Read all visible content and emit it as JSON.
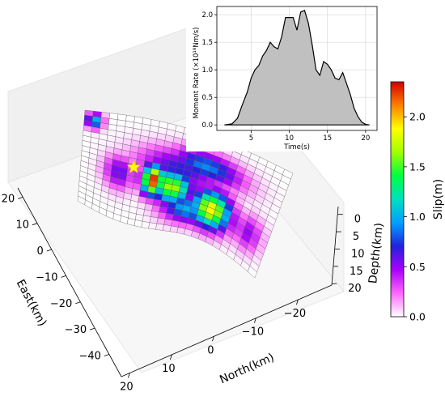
{
  "chart_data": [
    {
      "type": "heatmap",
      "subtype": "3d-fault-slip-surface",
      "xlabel": "North(km)",
      "ylabel": "East(km)",
      "zlabel": "Depth(km)",
      "north_ticks": [
        "20",
        "10",
        "0",
        "−10",
        "−20"
      ],
      "east_ticks": [
        "20",
        "10",
        "0",
        "−10",
        "−20",
        "−30",
        "−40"
      ],
      "depth_ticks": [
        "0",
        "5",
        "10",
        "15",
        "20"
      ],
      "fault_grid": {
        "cols": 25,
        "rows": 18
      },
      "hypocenter_marker": "yellow star",
      "slip_patches": [
        {
          "u": 0.38,
          "v": 0.55,
          "ru": 0.06,
          "rv": 0.14,
          "peak": 2.3
        },
        {
          "u": 0.48,
          "v": 0.58,
          "ru": 0.1,
          "rv": 0.16,
          "peak": 1.7
        },
        {
          "u": 0.7,
          "v": 0.68,
          "ru": 0.1,
          "rv": 0.18,
          "peak": 1.9
        },
        {
          "u": 0.58,
          "v": 0.75,
          "ru": 0.14,
          "rv": 0.14,
          "peak": 1.0
        },
        {
          "u": 0.5,
          "v": 0.4,
          "ru": 0.22,
          "rv": 0.18,
          "peak": 0.7
        },
        {
          "u": 0.62,
          "v": 0.3,
          "ru": 0.18,
          "rv": 0.14,
          "peak": 0.9
        },
        {
          "u": 0.2,
          "v": 0.55,
          "ru": 0.08,
          "rv": 0.16,
          "peak": 0.6
        },
        {
          "u": 0.05,
          "v": 0.1,
          "ru": 0.04,
          "rv": 0.08,
          "peak": 1.1
        },
        {
          "u": 0.9,
          "v": 0.7,
          "ru": 0.07,
          "rv": 0.16,
          "peak": 0.5
        }
      ]
    },
    {
      "type": "area",
      "title": "",
      "xlabel": "Time(s)",
      "ylabel": "Moment Rate (×10¹⁸Nm/s)",
      "xlim": [
        0.5,
        21.5
      ],
      "ylim": [
        -0.1,
        2.15
      ],
      "x_ticks": [
        5,
        10,
        15,
        20
      ],
      "y_ticks": [
        "0.0",
        "0.5",
        "1.0",
        "1.5",
        "2.0"
      ],
      "grid": true,
      "x": [
        1.5,
        2.5,
        3.2,
        3.8,
        4.5,
        5.0,
        5.5,
        6.0,
        6.5,
        7.0,
        7.5,
        8.0,
        8.5,
        9.0,
        9.5,
        10.0,
        10.5,
        11.0,
        11.5,
        12.0,
        12.5,
        13.0,
        13.5,
        14.0,
        14.5,
        15.0,
        15.5,
        16.0,
        16.5,
        17.0,
        17.5,
        18.0,
        18.5,
        19.0,
        19.5,
        20.0,
        20.5
      ],
      "y": [
        0.0,
        0.02,
        0.12,
        0.35,
        0.6,
        0.85,
        1.0,
        1.08,
        1.25,
        1.35,
        1.5,
        1.42,
        1.38,
        1.6,
        1.95,
        1.95,
        1.95,
        1.72,
        2.05,
        2.08,
        1.85,
        1.45,
        1.0,
        0.9,
        1.15,
        1.1,
        1.0,
        0.85,
        0.82,
        0.95,
        0.75,
        0.55,
        0.3,
        0.15,
        0.05,
        0.01,
        0.0
      ]
    },
    {
      "type": "colorbar",
      "label": "Slip(m)",
      "ticks": [
        "0.0",
        "0.5",
        "1.0",
        "1.5",
        "2.0"
      ],
      "vmin": 0.0,
      "vmax": 2.35,
      "colors": [
        "#ffffff",
        "#ff66ff",
        "#aa00ff",
        "#2222dd",
        "#00a0ff",
        "#00e0c0",
        "#00ff40",
        "#a0ff00",
        "#ffff00",
        "#ff8000",
        "#d00000"
      ]
    }
  ]
}
